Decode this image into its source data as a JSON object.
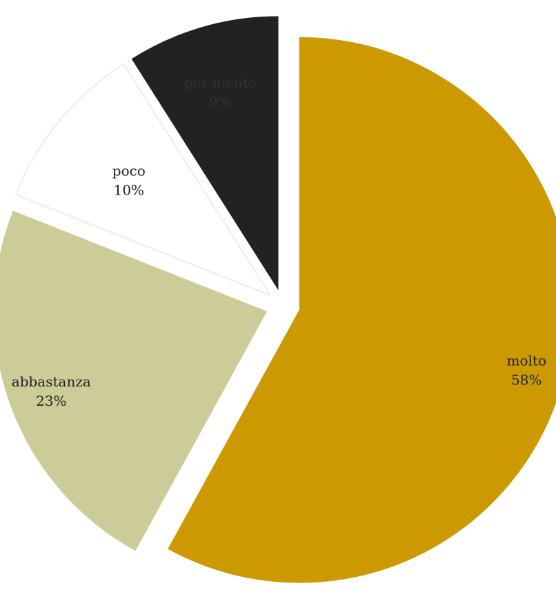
{
  "chart_data": {
    "type": "pie",
    "title": "",
    "slices": [
      {
        "label": "molto",
        "value": 58,
        "pct_label": "58%",
        "color": "#CC9900",
        "text_color": "#222222"
      },
      {
        "label": "abbastanza",
        "value": 23,
        "pct_label": "23%",
        "color": "#CCCC99",
        "text_color": "#222222"
      },
      {
        "label": "poco",
        "value": 10,
        "pct_label": "10%",
        "color": "#FFFFFF",
        "text_color": "#222222"
      },
      {
        "label": "per niente",
        "value": 9,
        "pct_label": "9%",
        "color": "#222222",
        "text_color": "#333333"
      }
    ],
    "start_angle_deg": 0,
    "direction": "clockwise",
    "exploded": true,
    "legend": "none"
  }
}
